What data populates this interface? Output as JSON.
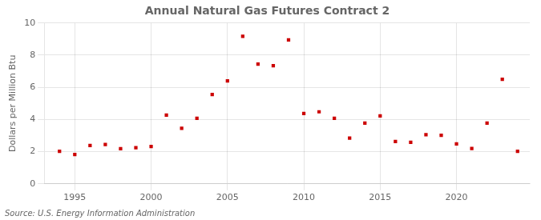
{
  "chart_data": {
    "type": "scatter",
    "title": "Annual Natural Gas Futures Contract 2",
    "ylabel": "Dollars per Million Btu",
    "annotations": [
      "Source: U.S. Energy Information Administration"
    ],
    "x": [
      1994,
      1995,
      1996,
      1997,
      1998,
      1999,
      2000,
      2001,
      2002,
      2003,
      2004,
      2005,
      2006,
      2007,
      2008,
      2009,
      2010,
      2011,
      2012,
      2013,
      2014,
      2015,
      2016,
      2017,
      2018,
      2019,
      2020,
      2021,
      2022,
      2023,
      2024
    ],
    "values": [
      2.02,
      1.82,
      2.38,
      2.45,
      2.18,
      2.25,
      2.32,
      4.28,
      3.45,
      4.08,
      5.55,
      6.4,
      9.18,
      7.45,
      7.35,
      8.95,
      4.38,
      4.48,
      4.07,
      2.85,
      3.78,
      4.23,
      2.63,
      2.58,
      3.05,
      3.02,
      2.48,
      2.2,
      3.78,
      6.5,
      2.02
    ],
    "color": "#cc0000",
    "marker": "square",
    "xlim": [
      1993.0,
      2024.8
    ],
    "xticks": [
      1995,
      2000,
      2005,
      2010,
      2015,
      2020
    ],
    "ylim": [
      0,
      10
    ],
    "yticks": [
      0,
      2,
      4,
      6,
      8,
      10
    ],
    "grid": true
  }
}
